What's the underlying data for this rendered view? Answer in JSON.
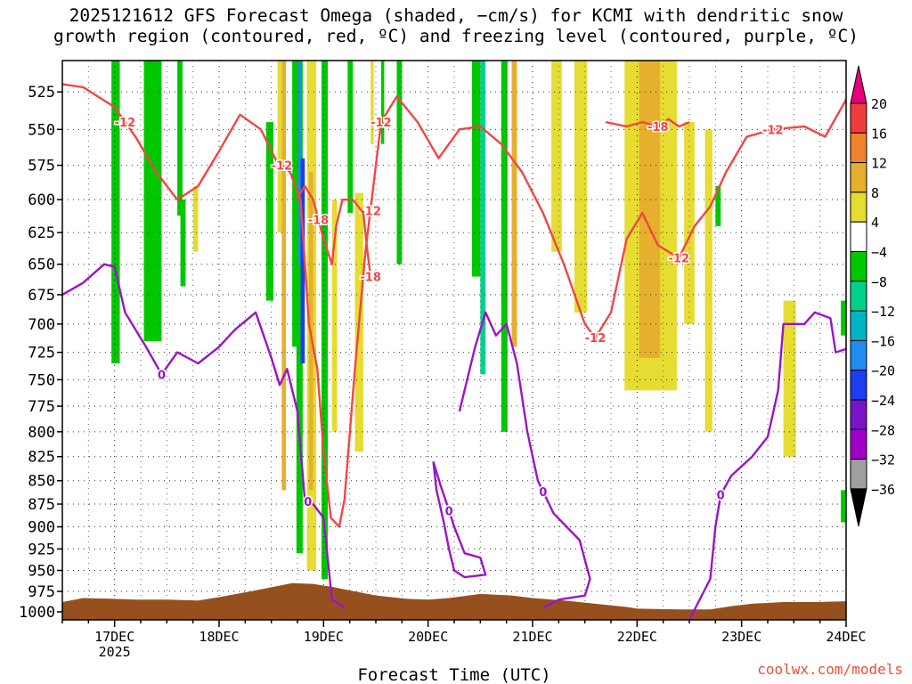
{
  "title_lines": [
    "2025121612 GFS Forecast Omega (shaded, −cm/s) for KCMI with dendritic snow",
    "growth region (contoured, red, ºC) and freezing level (contoured, purple, ºC)"
  ],
  "credit": "coolwx.com/models",
  "chart_data": {
    "type": "time-height cross section",
    "title": "2025121612 GFS Forecast Omega (shaded, −cm/s) for KCMI with dendritic snow growth region (contoured, red, ºC) and freezing level (contoured, purple, ºC)",
    "xlabel": "Forecast Time (UTC)",
    "ylabel": "",
    "x_start_day": 16.5,
    "x_end_day": 24.0,
    "x_ticks": [
      {
        "day": 17,
        "label": "17DEC",
        "sub": "2025"
      },
      {
        "day": 18,
        "label": "18DEC",
        "sub": ""
      },
      {
        "day": 19,
        "label": "19DEC",
        "sub": ""
      },
      {
        "day": 20,
        "label": "20DEC",
        "sub": ""
      },
      {
        "day": 21,
        "label": "21DEC",
        "sub": ""
      },
      {
        "day": 22,
        "label": "22DEC",
        "sub": ""
      },
      {
        "day": 23,
        "label": "23DEC",
        "sub": ""
      },
      {
        "day": 24,
        "label": "24DEC",
        "sub": ""
      }
    ],
    "y_scale": "log pressure",
    "ylim_hpa": [
      1010,
      505
    ],
    "y_ticks": [
      525,
      550,
      575,
      600,
      625,
      650,
      675,
      700,
      725,
      750,
      775,
      800,
      825,
      850,
      875,
      900,
      925,
      950,
      975,
      1000
    ],
    "grid": "dotted",
    "colorbar": {
      "labels": [
        "20",
        "16",
        "12",
        "8",
        "4",
        "−4",
        "−8",
        "−12",
        "−16",
        "−20",
        "−24",
        "−28",
        "−32",
        "−36"
      ],
      "bins": [
        {
          "lo": 16,
          "hi": 20,
          "color": "#f03c3c"
        },
        {
          "lo": 12,
          "hi": 16,
          "color": "#f0822d"
        },
        {
          "lo": 8,
          "hi": 12,
          "color": "#e6af2d"
        },
        {
          "lo": 4,
          "hi": 8,
          "color": "#e6dc32"
        },
        {
          "lo": -4,
          "hi": 4,
          "color": "#ffffff"
        },
        {
          "lo": -8,
          "hi": -4,
          "color": "#00c800"
        },
        {
          "lo": -12,
          "hi": -8,
          "color": "#00d28c"
        },
        {
          "lo": -16,
          "hi": -12,
          "color": "#00b4c8"
        },
        {
          "lo": -20,
          "hi": -16,
          "color": "#1e8cf0"
        },
        {
          "lo": -24,
          "hi": -20,
          "color": "#1e3cf0"
        },
        {
          "lo": -28,
          "hi": -24,
          "color": "#7814c8"
        },
        {
          "lo": -32,
          "hi": -28,
          "color": "#a000c8"
        },
        {
          "lo": -36,
          "hi": -32,
          "color": "#a0a0a0"
        }
      ],
      "top_arrow_color": "#e6007a",
      "bottom_arrow_color": "#000000"
    },
    "omega_shading": [
      {
        "day0": 16.97,
        "day1": 17.05,
        "p0": 505,
        "p1": 735,
        "color": "#00c800"
      },
      {
        "day0": 17.28,
        "day1": 17.45,
        "p0": 505,
        "p1": 715,
        "color": "#00c800"
      },
      {
        "day0": 17.6,
        "day1": 17.65,
        "p0": 505,
        "p1": 612,
        "color": "#00c800"
      },
      {
        "day0": 17.63,
        "day1": 17.68,
        "p0": 600,
        "p1": 668,
        "color": "#00c800"
      },
      {
        "day0": 17.75,
        "day1": 17.8,
        "p0": 590,
        "p1": 640,
        "color": "#e6dc32"
      },
      {
        "day0": 18.45,
        "day1": 18.52,
        "p0": 545,
        "p1": 680,
        "color": "#00c800"
      },
      {
        "day0": 18.56,
        "day1": 18.62,
        "p0": 505,
        "p1": 625,
        "color": "#e6dc32"
      },
      {
        "day0": 18.6,
        "day1": 18.64,
        "p0": 505,
        "p1": 860,
        "color": "#e6af2d"
      },
      {
        "day0": 18.7,
        "day1": 18.75,
        "p0": 505,
        "p1": 720,
        "color": "#00c800"
      },
      {
        "day0": 18.74,
        "day1": 18.8,
        "p0": 505,
        "p1": 930,
        "color": "#00c800"
      },
      {
        "day0": 18.76,
        "day1": 18.79,
        "p0": 505,
        "p1": 650,
        "color": "#1e8cf0"
      },
      {
        "day0": 18.78,
        "day1": 18.82,
        "p0": 570,
        "p1": 735,
        "color": "#1e3cf0"
      },
      {
        "day0": 18.84,
        "day1": 18.93,
        "p0": 505,
        "p1": 950,
        "color": "#e6dc32"
      },
      {
        "day0": 18.86,
        "day1": 18.9,
        "p0": 580,
        "p1": 860,
        "color": "#e6af2d"
      },
      {
        "day0": 18.98,
        "day1": 19.04,
        "p0": 505,
        "p1": 960,
        "color": "#00c800"
      },
      {
        "day0": 19.08,
        "day1": 19.13,
        "p0": 600,
        "p1": 800,
        "color": "#e6dc32"
      },
      {
        "day0": 19.23,
        "day1": 19.28,
        "p0": 505,
        "p1": 610,
        "color": "#00c800"
      },
      {
        "day0": 19.3,
        "day1": 19.38,
        "p0": 595,
        "p1": 820,
        "color": "#e6dc32"
      },
      {
        "day0": 19.45,
        "day1": 19.48,
        "p0": 505,
        "p1": 560,
        "color": "#e6dc32"
      },
      {
        "day0": 19.55,
        "day1": 19.58,
        "p0": 505,
        "p1": 560,
        "color": "#00c800"
      },
      {
        "day0": 19.7,
        "day1": 19.75,
        "p0": 505,
        "p1": 650,
        "color": "#00c800"
      },
      {
        "day0": 20.42,
        "day1": 20.5,
        "p0": 505,
        "p1": 660,
        "color": "#00c800"
      },
      {
        "day0": 20.5,
        "day1": 20.55,
        "p0": 505,
        "p1": 745,
        "color": "#00d28c"
      },
      {
        "day0": 20.7,
        "day1": 20.76,
        "p0": 505,
        "p1": 800,
        "color": "#00c800"
      },
      {
        "day0": 20.8,
        "day1": 20.85,
        "p0": 505,
        "p1": 720,
        "color": "#e6af2d"
      },
      {
        "day0": 21.18,
        "day1": 21.28,
        "p0": 505,
        "p1": 640,
        "color": "#e6dc32"
      },
      {
        "day0": 21.4,
        "day1": 21.52,
        "p0": 505,
        "p1": 690,
        "color": "#e6dc32"
      },
      {
        "day0": 21.88,
        "day1": 22.38,
        "p0": 505,
        "p1": 760,
        "color": "#e6dc32"
      },
      {
        "day0": 22.02,
        "day1": 22.22,
        "p0": 505,
        "p1": 730,
        "color": "#e6af2d"
      },
      {
        "day0": 22.45,
        "day1": 22.55,
        "p0": 545,
        "p1": 700,
        "color": "#e6dc32"
      },
      {
        "day0": 22.65,
        "day1": 22.72,
        "p0": 550,
        "p1": 800,
        "color": "#e6dc32"
      },
      {
        "day0": 22.75,
        "day1": 22.8,
        "p0": 590,
        "p1": 620,
        "color": "#00c800"
      },
      {
        "day0": 23.4,
        "day1": 23.52,
        "p0": 680,
        "p1": 825,
        "color": "#e6dc32"
      },
      {
        "day0": 23.95,
        "day1": 24.0,
        "p0": 680,
        "p1": 710,
        "color": "#00c800"
      },
      {
        "day0": 23.95,
        "day1": 24.0,
        "p0": 860,
        "p1": 895,
        "color": "#00c800"
      }
    ],
    "dgz_contours": [
      {
        "label": "-12",
        "points": [
          [
            16.5,
            520
          ],
          [
            16.7,
            522
          ],
          [
            17.0,
            535
          ],
          [
            17.2,
            555
          ],
          [
            17.4,
            580
          ],
          [
            17.6,
            600
          ],
          [
            17.8,
            590
          ],
          [
            18.0,
            565
          ],
          [
            18.2,
            540
          ],
          [
            18.4,
            550
          ],
          [
            18.55,
            572
          ],
          [
            18.68,
            580
          ],
          [
            18.78,
            600
          ],
          [
            18.86,
            700
          ],
          [
            18.94,
            740
          ],
          [
            19.0,
            820
          ],
          [
            19.07,
            890
          ],
          [
            19.15,
            900
          ],
          [
            19.2,
            870
          ],
          [
            19.3,
            740
          ],
          [
            19.4,
            640
          ],
          [
            19.55,
            545
          ],
          [
            19.7,
            528
          ],
          [
            19.9,
            545
          ],
          [
            20.1,
            570
          ],
          [
            20.3,
            550
          ],
          [
            20.5,
            548
          ],
          [
            20.7,
            560
          ],
          [
            20.9,
            580
          ],
          [
            21.1,
            610
          ],
          [
            21.3,
            650
          ],
          [
            21.5,
            700
          ],
          [
            21.6,
            712
          ],
          [
            21.75,
            690
          ],
          [
            21.9,
            630
          ],
          [
            22.05,
            610
          ],
          [
            22.2,
            635
          ],
          [
            22.4,
            645
          ],
          [
            22.55,
            620
          ],
          [
            22.7,
            605
          ],
          [
            22.85,
            580
          ],
          [
            23.05,
            555
          ],
          [
            23.3,
            550
          ],
          [
            23.6,
            548
          ],
          [
            23.8,
            555
          ],
          [
            24.0,
            530
          ]
        ],
        "label_days": [
          17.1,
          18.6,
          19.55,
          21.6,
          22.4,
          23.3,
          19.45
        ]
      },
      {
        "label": "-18",
        "points": [
          [
            18.74,
            600
          ],
          [
            18.82,
            590
          ],
          [
            18.9,
            600
          ],
          [
            19.0,
            630
          ],
          [
            19.08,
            650
          ],
          [
            19.12,
            620
          ],
          [
            19.18,
            600
          ],
          [
            19.28,
            600
          ],
          [
            19.38,
            610
          ],
          [
            19.42,
            640
          ],
          [
            19.45,
            660
          ]
        ],
        "label_days": [
          18.95,
          19.45
        ]
      },
      {
        "label": "-18",
        "points": [
          [
            21.7,
            545
          ],
          [
            21.9,
            548
          ],
          [
            22.05,
            545
          ],
          [
            22.2,
            548
          ],
          [
            22.3,
            543
          ],
          [
            22.4,
            548
          ],
          [
            22.5,
            545
          ]
        ],
        "label_days": [
          22.2
        ]
      }
    ],
    "freezing_level": [
      {
        "label": "0",
        "points": [
          [
            16.5,
            675
          ],
          [
            16.7,
            665
          ],
          [
            16.9,
            650
          ],
          [
            17.0,
            652
          ],
          [
            17.1,
            690
          ],
          [
            17.3,
            720
          ],
          [
            17.45,
            745
          ],
          [
            17.6,
            725
          ],
          [
            17.8,
            735
          ],
          [
            18.0,
            720
          ],
          [
            18.15,
            705
          ],
          [
            18.35,
            690
          ],
          [
            18.5,
            730
          ],
          [
            18.58,
            755
          ],
          [
            18.65,
            740
          ],
          [
            18.75,
            780
          ],
          [
            18.82,
            870
          ],
          [
            18.9,
            875
          ],
          [
            19.0,
            890
          ],
          [
            19.08,
            985
          ],
          [
            19.2,
            995
          ]
        ],
        "label_days": [
          17.45,
          18.85
        ]
      },
      {
        "label": "0",
        "points": [
          [
            20.05,
            830
          ],
          [
            20.12,
            855
          ],
          [
            20.18,
            875
          ],
          [
            20.25,
            900
          ],
          [
            20.35,
            930
          ],
          [
            20.5,
            935
          ],
          [
            20.55,
            955
          ],
          [
            20.35,
            958
          ],
          [
            20.25,
            950
          ],
          [
            20.2,
            925
          ],
          [
            20.15,
            895
          ],
          [
            20.08,
            860
          ],
          [
            20.05,
            830
          ]
        ],
        "label_days": [
          20.2
        ]
      },
      {
        "label": "0",
        "points": [
          [
            20.3,
            780
          ],
          [
            20.45,
            720
          ],
          [
            20.55,
            690
          ],
          [
            20.65,
            710
          ],
          [
            20.75,
            700
          ],
          [
            20.85,
            735
          ],
          [
            20.95,
            800
          ],
          [
            21.05,
            850
          ],
          [
            21.2,
            885
          ],
          [
            21.45,
            915
          ],
          [
            21.55,
            960
          ],
          [
            21.5,
            980
          ],
          [
            21.25,
            985
          ],
          [
            21.1,
            995
          ]
        ],
        "label_days": [
          21.1
        ]
      },
      {
        "label": "0",
        "points": [
          [
            22.5,
            1010
          ],
          [
            22.7,
            960
          ],
          [
            22.75,
            900
          ],
          [
            22.8,
            865
          ],
          [
            22.9,
            845
          ],
          [
            23.1,
            825
          ],
          [
            23.25,
            805
          ],
          [
            23.35,
            760
          ],
          [
            23.4,
            700
          ],
          [
            23.6,
            700
          ],
          [
            23.7,
            690
          ],
          [
            23.85,
            695
          ],
          [
            23.9,
            725
          ],
          [
            24.0,
            722
          ]
        ],
        "label_days": [
          22.8
        ]
      }
    ],
    "terrain_top_hpa": [
      [
        16.5,
        988
      ],
      [
        16.7,
        983
      ],
      [
        17.0,
        984
      ],
      [
        17.2,
        985
      ],
      [
        17.5,
        985
      ],
      [
        17.8,
        986
      ],
      [
        18.0,
        982
      ],
      [
        18.3,
        975
      ],
      [
        18.5,
        970
      ],
      [
        18.7,
        965
      ],
      [
        18.9,
        966
      ],
      [
        19.1,
        970
      ],
      [
        19.3,
        975
      ],
      [
        19.5,
        980
      ],
      [
        19.8,
        984
      ],
      [
        20.0,
        985
      ],
      [
        20.2,
        983
      ],
      [
        20.5,
        978
      ],
      [
        20.8,
        980
      ],
      [
        21.0,
        983
      ],
      [
        21.3,
        986
      ],
      [
        21.6,
        990
      ],
      [
        21.9,
        994
      ],
      [
        22.0,
        996
      ],
      [
        22.4,
        997
      ],
      [
        22.7,
        997
      ],
      [
        22.9,
        993
      ],
      [
        23.1,
        990
      ],
      [
        23.4,
        988
      ],
      [
        23.7,
        988
      ],
      [
        24.0,
        987
      ]
    ],
    "terrain_color": "#96501e"
  }
}
